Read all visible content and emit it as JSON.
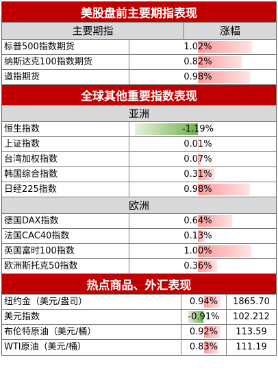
{
  "us_futures": {
    "title": "美股盘前主要期指表现",
    "col_name": "主要期指",
    "col_change": "涨幅",
    "rows": [
      {
        "name": "标普500指数期货",
        "change": "1.02%",
        "pct": 1.02
      },
      {
        "name": "纳斯达克100指数期货",
        "change": "0.82%",
        "pct": 0.82
      },
      {
        "name": "道指期货",
        "change": "0.98%",
        "pct": 0.98
      }
    ]
  },
  "global": {
    "title": "全球其他重要指数表现",
    "asia": {
      "label": "亚洲",
      "rows": [
        {
          "name": "恒生指数",
          "change": "-1.19%",
          "pct": -1.19
        },
        {
          "name": "上证指数",
          "change": "0.01%",
          "pct": 0.01
        },
        {
          "name": "台湾加权指数",
          "change": "0.07%",
          "pct": 0.07
        },
        {
          "name": "韩国综合指数",
          "change": "0.31%",
          "pct": 0.31
        },
        {
          "name": "日经225指数",
          "change": "0.98%",
          "pct": 0.98
        }
      ]
    },
    "europe": {
      "label": "欧洲",
      "rows": [
        {
          "name": "德国DAX指数",
          "change": "0.64%",
          "pct": 0.64
        },
        {
          "name": "法国CAC40指数",
          "change": "0.13%",
          "pct": 0.13
        },
        {
          "name": "英国富时100指数",
          "change": "1.00%",
          "pct": 1.0
        },
        {
          "name": "欧洲斯托克50指数",
          "change": "0.36%",
          "pct": 0.36
        }
      ]
    }
  },
  "commodities": {
    "title": "热点商品、外汇表现",
    "rows": [
      {
        "name": "纽约金（美元/盎司）",
        "change": "0.94%",
        "pct": 0.94,
        "price": "1865.70"
      },
      {
        "name": "美元指数",
        "change": "-0.91%",
        "pct": -0.91,
        "price": "102.212"
      },
      {
        "name": "布伦特原油（美元/桶）",
        "change": "0.92%",
        "pct": 0.92,
        "price": "113.59"
      },
      {
        "name": "WTI原油（美元/桶）",
        "change": "0.83%",
        "pct": 0.83,
        "price": "111.19"
      }
    ]
  },
  "colors": {
    "header": "#c00000",
    "positive": "#ff9a9a",
    "negative": "#6fb04a"
  }
}
